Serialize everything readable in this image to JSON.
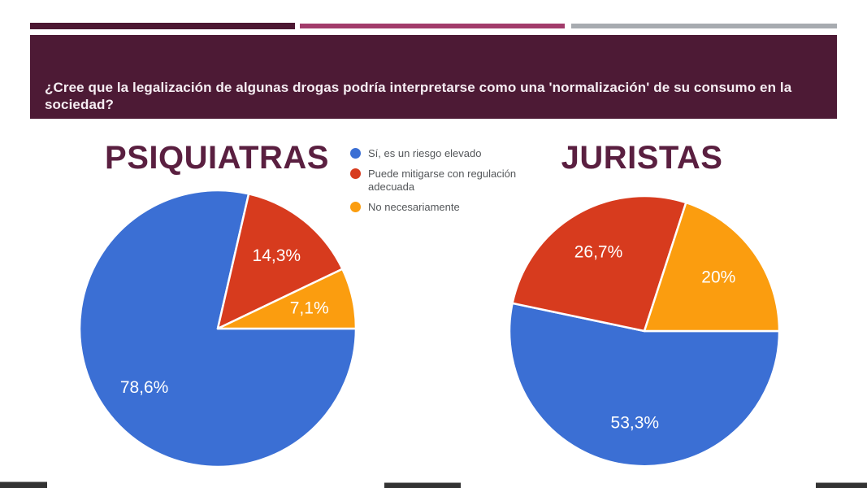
{
  "slide": {
    "background": "#FFFFFF"
  },
  "top_bars": {
    "left_color": "#4C1832",
    "middle_color": "#A23C6B",
    "right_color": "#A7ABB0"
  },
  "header": {
    "question": "¿Cree que la legalización de algunas drogas podría interpretarse como una 'normalización' de su consumo en la sociedad?",
    "background": "#4D1A35",
    "text_color": "#F5EDF2"
  },
  "titles_color": "#5A1F40",
  "legend": {
    "text_color": "#54575A",
    "items": [
      {
        "label": "Sí, es un riesgo elevado",
        "color": "#3B6FD4"
      },
      {
        "label": "Puede mitigarse con regulación adecuada",
        "color": "#D73B1E"
      },
      {
        "label": "No necesariamente",
        "color": "#FB9D0F"
      }
    ]
  },
  "bottom_bars": {
    "color": "#333333"
  },
  "chart_data": [
    {
      "type": "pie",
      "title": "PSIQUIATRAS",
      "labels": [
        "Sí, es un riesgo elevado",
        "Puede mitigarse con regulación adecuada",
        "No necesariamente"
      ],
      "values": [
        78.6,
        14.3,
        7.1
      ],
      "value_labels": [
        "78,6%",
        "14,3%",
        "7,1%"
      ],
      "colors": [
        "#3B6FD4",
        "#D73B1E",
        "#FB9D0F"
      ],
      "start_angle_clockwise_from_top_deg": 90,
      "slice_label_color": "#FFFFFF",
      "legend_position": "top-center-between-charts"
    },
    {
      "type": "pie",
      "title": "JURISTAS",
      "labels": [
        "Sí, es un riesgo elevado",
        "Puede mitigarse con regulación adecuada",
        "No necesariamente"
      ],
      "values": [
        53.3,
        26.7,
        20
      ],
      "value_labels": [
        "53,3%",
        "26,7%",
        "20%"
      ],
      "colors": [
        "#3B6FD4",
        "#D73B1E",
        "#FB9D0F"
      ],
      "start_angle_clockwise_from_top_deg": 90,
      "slice_label_color": "#FFFFFF",
      "legend_position": "top-center-between-charts"
    }
  ]
}
